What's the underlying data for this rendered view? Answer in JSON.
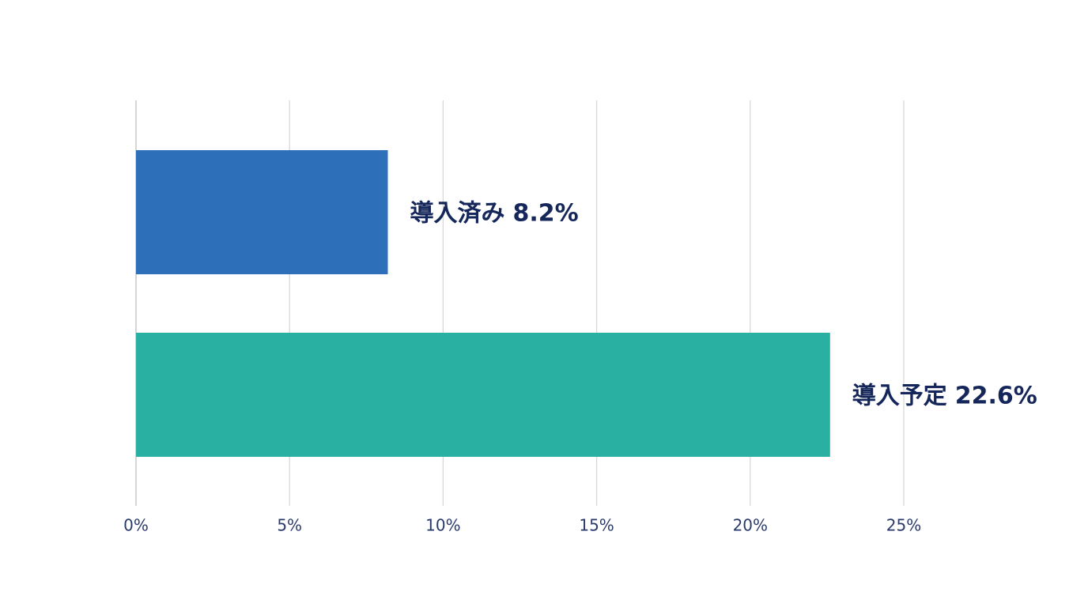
{
  "chart_data": {
    "type": "hbar",
    "categories": [
      "導入済み",
      "導入予定"
    ],
    "values": [
      8.2,
      22.6
    ],
    "value_labels": [
      "8.2%",
      "22.6%"
    ],
    "colors": [
      "#2e6fba",
      "#2ab0a2"
    ],
    "xlim": [
      0,
      25
    ],
    "xticks": [
      {
        "value": 0,
        "label": "0%"
      },
      {
        "value": 5,
        "label": "5%"
      },
      {
        "value": 10,
        "label": "10%"
      },
      {
        "value": 15,
        "label": "15%"
      },
      {
        "value": 20,
        "label": "20%"
      },
      {
        "value": 25,
        "label": "25%"
      }
    ],
    "grid": true
  }
}
